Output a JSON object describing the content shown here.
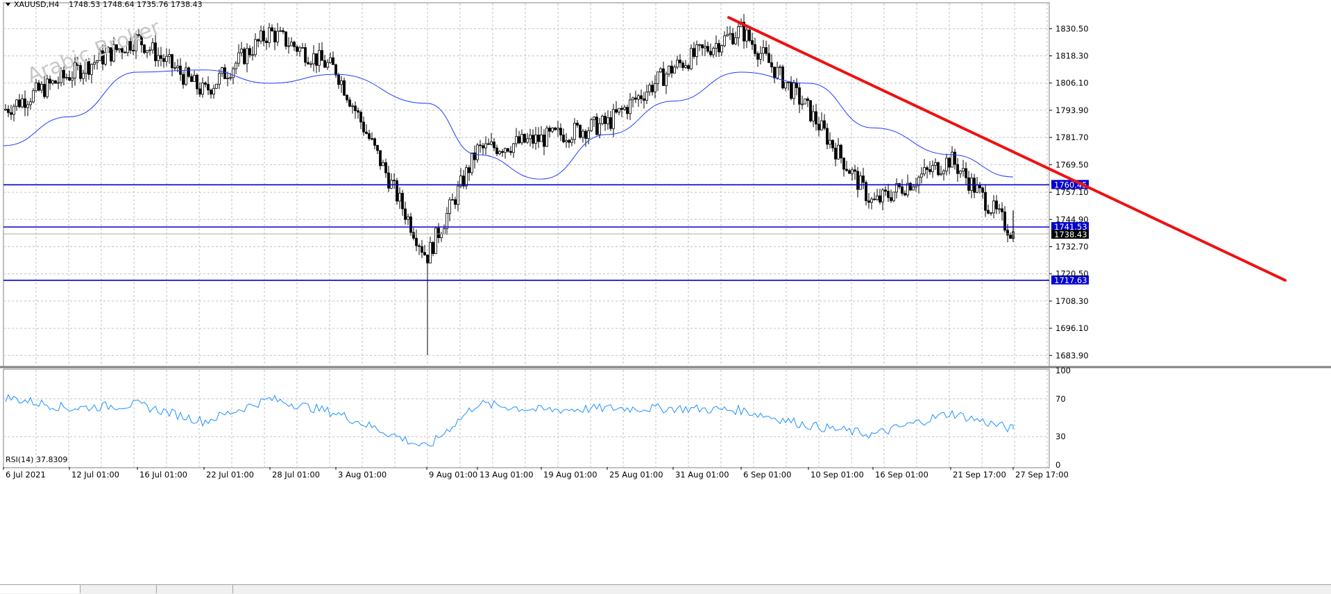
{
  "header": {
    "symbol": "XAUUSD,H4",
    "ohlc": "1748.53 1748.64 1735.76 1738.43"
  },
  "watermark": "Arabic Broker",
  "colors": {
    "candles": "#000000",
    "ma": "#1e3cff",
    "levels": "#0000d0",
    "trendline": "#ee1111",
    "rsi": "#1e90ff",
    "grid": "#c0c0c0",
    "label_bg": "#0000d0",
    "price_label_bg": "#000000"
  },
  "chart_data": [
    {
      "type": "candlestick",
      "title": "",
      "ylim": [
        1679.0,
        1839.0
      ],
      "y_ticks": [
        "1830.50",
        "1818.30",
        "1806.10",
        "1793.90",
        "1781.70",
        "1769.50",
        "1757.10",
        "1744.90",
        "1732.70",
        "1720.50",
        "1708.30",
        "1696.10",
        "1683.90"
      ],
      "x_tick_labels": [
        "6 Jul 2021",
        "12 Jul 01:00",
        "16 Jul 01:00",
        "22 Jul 01:00",
        "28 Jul 01:00",
        "3 Aug 01:00",
        "9 Aug 01:00",
        "13 Aug 01:00",
        "19 Aug 01:00",
        "25 Aug 01:00",
        "31 Aug 01:00",
        "6 Sep 01:00",
        "10 Sep 01:00",
        "16 Sep 01:00",
        "21 Sep 17:00",
        "27 Sep 17:00"
      ],
      "grid": true,
      "key_points": [
        {
          "date": "6 Jul 2021",
          "close": 1794
        },
        {
          "date": "16 Jul 01:00",
          "close": 1826
        },
        {
          "date": "22 Jul 01:00",
          "close": 1802
        },
        {
          "date": "28 Jul 01:00",
          "close": 1829
        },
        {
          "date": "3 Aug 01:00",
          "close": 1812
        },
        {
          "date": "9 Aug 01:00",
          "close": 1728,
          "low": 1684
        },
        {
          "date": "13 Aug 01:00",
          "close": 1776
        },
        {
          "date": "19 Aug 01:00",
          "close": 1781
        },
        {
          "date": "25 Aug 01:00",
          "close": 1788
        },
        {
          "date": "31 Aug 01:00",
          "close": 1813
        },
        {
          "date": "6 Sep 01:00",
          "close": 1830
        },
        {
          "date": "10 Sep 01:00",
          "close": 1794
        },
        {
          "date": "16 Sep 01:00",
          "close": 1752
        },
        {
          "date": "21 Sep 17:00",
          "close": 1772
        },
        {
          "date": "27 Sep 17:00",
          "close": 1738.43
        }
      ],
      "moving_average": [
        {
          "date": "6 Jul 2021",
          "value": 1778
        },
        {
          "date": "12 Jul 01:00",
          "value": 1791
        },
        {
          "date": "16 Jul 01:00",
          "value": 1811
        },
        {
          "date": "22 Jul 01:00",
          "value": 1812
        },
        {
          "date": "28 Jul 01:00",
          "value": 1806
        },
        {
          "date": "3 Aug 01:00",
          "value": 1810
        },
        {
          "date": "9 Aug 01:00",
          "value": 1797
        },
        {
          "date": "13 Aug 01:00",
          "value": 1774
        },
        {
          "date": "19 Aug 01:00",
          "value": 1763
        },
        {
          "date": "25 Aug 01:00",
          "value": 1783
        },
        {
          "date": "31 Aug 01:00",
          "value": 1798
        },
        {
          "date": "6 Sep 01:00",
          "value": 1811
        },
        {
          "date": "10 Sep 01:00",
          "value": 1806
        },
        {
          "date": "16 Sep 01:00",
          "value": 1786
        },
        {
          "date": "21 Sep 17:00",
          "value": 1774
        },
        {
          "date": "27 Sep 17:00",
          "value": 1764
        }
      ],
      "horizontal_levels": [
        {
          "value": 1760.45,
          "label": "1760.45"
        },
        {
          "value": 1741.53,
          "label": "1741.53"
        },
        {
          "value": 1717.63,
          "label": "1717.63"
        }
      ],
      "current_price": {
        "value": 1738.43,
        "label": "1738.43"
      },
      "trendline": {
        "from": {
          "date": "6 Sep 01:00",
          "value": 1835.5
        },
        "to": {
          "value": 1717.63
        }
      }
    },
    {
      "type": "line",
      "title": "RSI(14) 37.8309",
      "ylim": [
        0,
        100
      ],
      "y_ticks": [
        "100",
        "70",
        "30",
        "0"
      ],
      "series": [
        {
          "name": "RSI(14)",
          "points": [
            {
              "date": "6 Jul 2021",
              "value": 72
            },
            {
              "date": "12 Jul 01:00",
              "value": 60
            },
            {
              "date": "16 Jul 01:00",
              "value": 64
            },
            {
              "date": "22 Jul 01:00",
              "value": 46
            },
            {
              "date": "28 Jul 01:00",
              "value": 70
            },
            {
              "date": "3 Aug 01:00",
              "value": 55
            },
            {
              "date": "9 Aug 01:00",
              "value": 18
            },
            {
              "date": "13 Aug 01:00",
              "value": 65
            },
            {
              "date": "19 Aug 01:00",
              "value": 58
            },
            {
              "date": "25 Aug 01:00",
              "value": 60
            },
            {
              "date": "31 Aug 01:00",
              "value": 60
            },
            {
              "date": "6 Sep 01:00",
              "value": 58
            },
            {
              "date": "10 Sep 01:00",
              "value": 42
            },
            {
              "date": "16 Sep 01:00",
              "value": 32
            },
            {
              "date": "21 Sep 17:00",
              "value": 55
            },
            {
              "date": "27 Sep 17:00",
              "value": 37.8
            }
          ]
        }
      ]
    }
  ]
}
